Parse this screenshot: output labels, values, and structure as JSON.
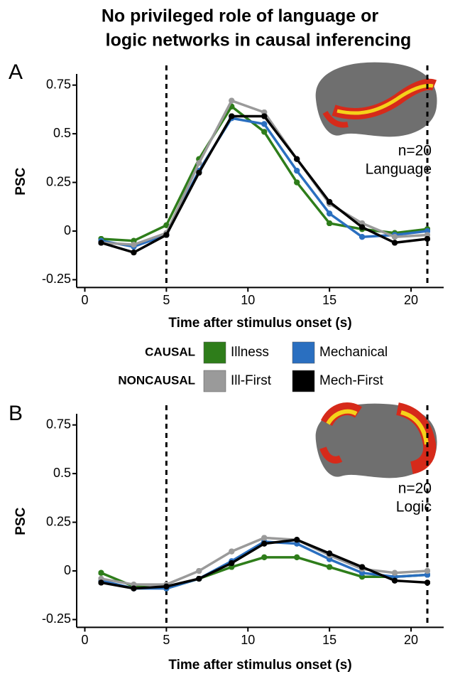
{
  "title": [
    "No privileged role of language or",
    "logic networks in causal inferencing"
  ],
  "legend": {
    "groups": [
      "CAUSAL",
      "NONCAUSAL"
    ]
  },
  "chart_data": [
    {
      "type": "line",
      "label": "A",
      "annotations": [
        "n=20",
        "Language"
      ],
      "x_label": "Time after stimulus onset (s)",
      "y_label": "PSC",
      "x": [
        1,
        3,
        5,
        7,
        9,
        11,
        13,
        15,
        17,
        19,
        21
      ],
      "xlim": [
        -0.5,
        22
      ],
      "xticks": [
        0,
        5,
        10,
        15,
        20
      ],
      "ylim": [
        -0.29,
        0.8
      ],
      "yticks": [
        -0.25,
        0,
        0.25,
        0.5,
        0.75
      ],
      "vlines": [
        5,
        21
      ],
      "series": [
        {
          "name": "Illness",
          "color": "#2e7d1a",
          "values": [
            -0.04,
            -0.05,
            0.03,
            0.37,
            0.64,
            0.51,
            0.25,
            0.04,
            0.01,
            -0.01,
            0.01
          ]
        },
        {
          "name": "Mechanical",
          "color": "#2a6fc0",
          "values": [
            -0.05,
            -0.08,
            -0.02,
            0.31,
            0.58,
            0.55,
            0.31,
            0.09,
            -0.03,
            -0.02,
            0.0
          ]
        },
        {
          "name": "Ill-First",
          "color": "#9a9a9a",
          "values": [
            -0.06,
            -0.07,
            -0.01,
            0.35,
            0.67,
            0.61,
            0.37,
            0.14,
            0.04,
            -0.03,
            -0.02
          ]
        },
        {
          "name": "Mech-First",
          "color": "#000000",
          "values": [
            -0.06,
            -0.11,
            -0.02,
            0.3,
            0.59,
            0.59,
            0.37,
            0.15,
            0.02,
            -0.06,
            -0.04
          ]
        }
      ]
    },
    {
      "type": "line",
      "label": "B",
      "annotations": [
        "n=20",
        "Logic"
      ],
      "x_label": "Time after stimulus onset (s)",
      "y_label": "PSC",
      "x": [
        1,
        3,
        5,
        7,
        9,
        11,
        13,
        15,
        17,
        19,
        21
      ],
      "xlim": [
        -0.5,
        22
      ],
      "xticks": [
        0,
        5,
        10,
        15,
        20
      ],
      "ylim": [
        -0.29,
        0.8
      ],
      "yticks": [
        -0.25,
        0,
        0.25,
        0.5,
        0.75
      ],
      "vlines": [
        5,
        21
      ],
      "series": [
        {
          "color": "#2e7d1a",
          "values": [
            -0.01,
            -0.08,
            -0.09,
            -0.04,
            0.02,
            0.07,
            0.07,
            0.02,
            -0.03,
            -0.03,
            -0.02
          ]
        },
        {
          "color": "#2a6fc0",
          "values": [
            -0.05,
            -0.09,
            -0.09,
            -0.04,
            0.05,
            0.15,
            0.14,
            0.06,
            -0.01,
            -0.03,
            -0.02
          ]
        },
        {
          "color": "#9a9a9a",
          "values": [
            -0.04,
            -0.07,
            -0.07,
            0.0,
            0.1,
            0.17,
            0.16,
            0.08,
            0.01,
            -0.01,
            0.0
          ]
        },
        {
          "color": "#000000",
          "values": [
            -0.06,
            -0.09,
            -0.08,
            -0.04,
            0.04,
            0.14,
            0.16,
            0.09,
            0.02,
            -0.05,
            -0.06
          ]
        }
      ]
    }
  ]
}
